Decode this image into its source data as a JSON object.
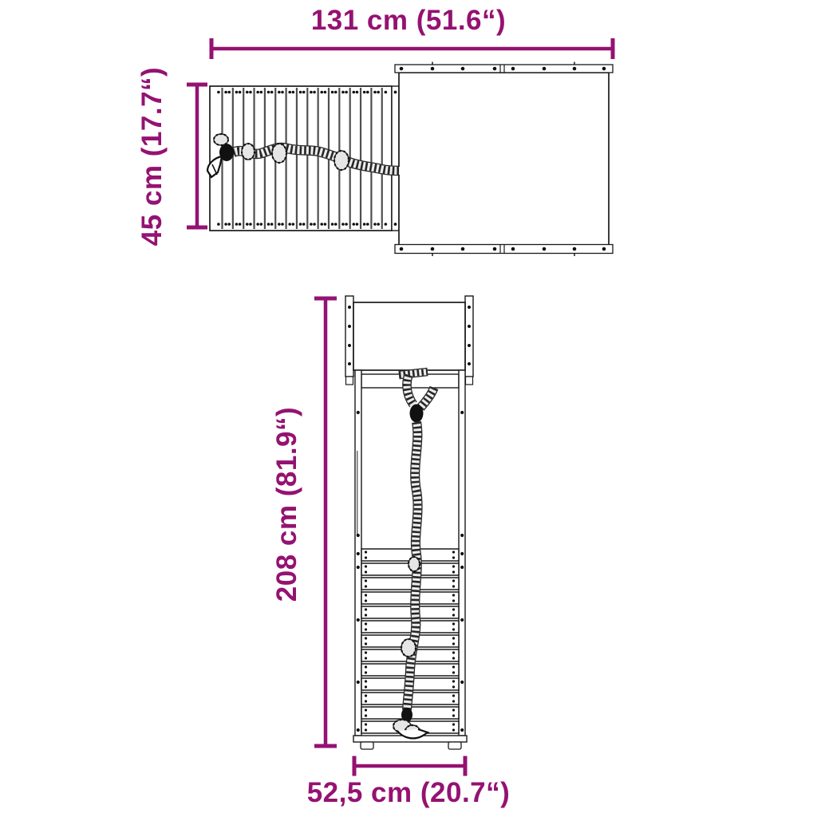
{
  "diagram": {
    "accent_color": "#941272",
    "line_color": "#1a1a1a",
    "background": "#ffffff",
    "top_view": {
      "description": "top view of climbing wall with rope attached to platform",
      "width_label": "131 cm (51.6“)",
      "height_label": "45 cm (17.7“)"
    },
    "side_view": {
      "description": "side view of climbing wall frame with climbing rope",
      "height_label": "208 cm (81.9“)",
      "width_label": "52,5 cm (20.7“)"
    }
  }
}
